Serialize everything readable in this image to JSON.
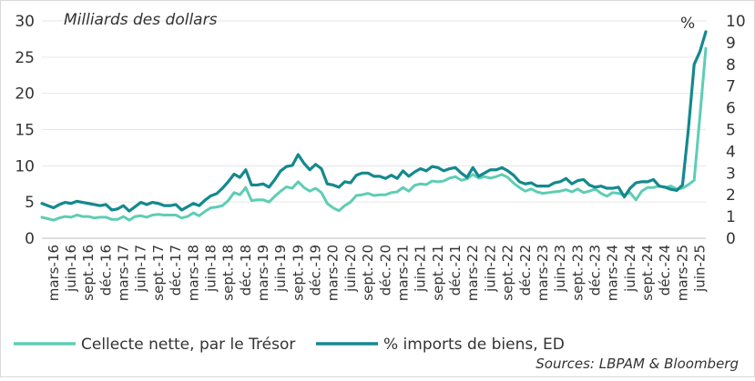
{
  "chart_data": {
    "type": "line",
    "title": "Milliards des dollars",
    "right_axis_unit": "%",
    "source": "Sources: LBPAM & Bloomberg",
    "y_left": {
      "min": 0,
      "max": 30,
      "ticks": [
        0,
        5,
        10,
        15,
        20,
        25,
        30
      ]
    },
    "y_right": {
      "min": 0,
      "max": 10,
      "ticks": [
        0,
        1,
        2,
        3,
        4,
        5,
        6,
        7,
        8,
        9,
        10
      ]
    },
    "grid": true,
    "legend_position": "bottom",
    "x": [
      "janv.-16",
      "févr.-16",
      "mars-16",
      "avr.-16",
      "mai-16",
      "juin-16",
      "juil.-16",
      "août-16",
      "sept.-16",
      "oct.-16",
      "nov.-16",
      "déc.-16",
      "janv.-17",
      "févr.-17",
      "mars-17",
      "avr.-17",
      "mai-17",
      "juin-17",
      "juil.-17",
      "août-17",
      "sept.-17",
      "oct.-17",
      "nov.-17",
      "déc.-17",
      "janv.-18",
      "févr.-18",
      "mars-18",
      "avr.-18",
      "mai-18",
      "juin-18",
      "juil.-18",
      "août-18",
      "sept.-18",
      "oct.-18",
      "nov.-18",
      "déc.-18",
      "janv.-19",
      "févr.-19",
      "mars-19",
      "avr.-19",
      "mai-19",
      "juin-19",
      "juil.-19",
      "août-19",
      "sept.-19",
      "oct.-19",
      "nov.-19",
      "déc.-19",
      "janv.-20",
      "févr.-20",
      "mars-20",
      "avr.-20",
      "mai-20",
      "juin-20",
      "juil.-20",
      "août-20",
      "sept.-20",
      "oct.-20",
      "nov.-20",
      "déc.-20",
      "janv.-21",
      "févr.-21",
      "mars-21",
      "avr.-21",
      "mai-21",
      "juin-21",
      "juil.-21",
      "août-21",
      "sept.-21",
      "oct.-21",
      "nov.-21",
      "déc.-21",
      "janv.-22",
      "févr.-22",
      "mars-22",
      "avr.-22",
      "mai-22",
      "juin-22",
      "juil.-22",
      "août-22",
      "sept.-22",
      "oct.-22",
      "nov.-22",
      "déc.-22",
      "janv.-23",
      "févr.-23",
      "mars-23",
      "avr.-23",
      "mai-23",
      "juin-23",
      "juil.-23",
      "août-23",
      "sept.-23",
      "oct.-23",
      "nov.-23",
      "déc.-23",
      "janv.-24",
      "févr.-24",
      "mars-24",
      "avr.-24",
      "mai-24",
      "juin-24",
      "juil.-24",
      "août-24",
      "sept.-24",
      "oct.-24",
      "nov.-24",
      "déc.-24",
      "janv.-25",
      "févr.-25",
      "mars-25",
      "avr.-25",
      "mai-25",
      "juin-25",
      "juil.-25"
    ],
    "tick_labels": [
      "mars-16",
      "juin-16",
      "sept.-16",
      "déc.-16",
      "mars-17",
      "juin-17",
      "sept.-17",
      "déc.-17",
      "mars-18",
      "juin-18",
      "sept.-18",
      "déc.-18",
      "mars-19",
      "juin-19",
      "sept.-19",
      "déc.-19",
      "mars-20",
      "juin-20",
      "sept.-20",
      "déc.-20",
      "mars-21",
      "juin-21",
      "sept.-21",
      "déc.-21",
      "mars-22",
      "juin-22",
      "sept.-22",
      "déc.-22",
      "mars-23",
      "juin-23",
      "sept.-23",
      "déc.-23",
      "mars-24",
      "juin-24",
      "sept.-24",
      "déc.-24",
      "mars-25",
      "juin-25"
    ],
    "series": [
      {
        "name": "Cellecte nette, par le Trésor",
        "axis": "left",
        "color": "#5ECDB4",
        "values": [
          2.9,
          2.7,
          2.5,
          2.8,
          3.0,
          2.9,
          3.2,
          3.0,
          3.0,
          2.8,
          2.9,
          2.9,
          2.6,
          2.6,
          3.0,
          2.5,
          3.0,
          3.1,
          2.9,
          3.2,
          3.3,
          3.2,
          3.2,
          3.2,
          2.8,
          3.0,
          3.5,
          3.1,
          3.7,
          4.2,
          4.3,
          4.5,
          5.2,
          6.3,
          6.0,
          7.0,
          5.2,
          5.3,
          5.3,
          5.0,
          5.8,
          6.5,
          7.1,
          6.9,
          7.8,
          7.0,
          6.5,
          6.9,
          6.3,
          4.8,
          4.2,
          3.8,
          4.5,
          5.0,
          5.9,
          6.0,
          6.2,
          5.9,
          6.0,
          6.0,
          6.3,
          6.4,
          7.0,
          6.5,
          7.3,
          7.5,
          7.4,
          7.9,
          7.8,
          7.9,
          8.3,
          8.5,
          8.0,
          8.2,
          8.8,
          8.3,
          8.5,
          8.3,
          8.5,
          8.8,
          8.4,
          7.6,
          7.0,
          6.5,
          6.8,
          6.4,
          6.2,
          6.3,
          6.4,
          6.5,
          6.7,
          6.4,
          6.8,
          6.3,
          6.5,
          6.8,
          6.2,
          5.8,
          6.3,
          6.2,
          6.0,
          6.3,
          5.3,
          6.5,
          7.0,
          7.0,
          7.2,
          7.0,
          7.2,
          6.8,
          6.9,
          7.4,
          8.0,
          17.0,
          26.2
        ]
      },
      {
        "name": "% imports de biens, ED",
        "axis": "right",
        "color": "#13898F",
        "values": [
          1.6,
          1.5,
          1.4,
          1.55,
          1.65,
          1.6,
          1.7,
          1.65,
          1.6,
          1.55,
          1.5,
          1.55,
          1.3,
          1.35,
          1.5,
          1.25,
          1.45,
          1.65,
          1.55,
          1.65,
          1.6,
          1.5,
          1.5,
          1.55,
          1.3,
          1.45,
          1.6,
          1.5,
          1.75,
          1.95,
          2.05,
          2.3,
          2.6,
          2.95,
          2.8,
          3.15,
          2.45,
          2.45,
          2.5,
          2.35,
          2.7,
          3.1,
          3.3,
          3.35,
          3.85,
          3.45,
          3.15,
          3.4,
          3.2,
          2.5,
          2.45,
          2.35,
          2.6,
          2.55,
          2.9,
          3.0,
          3.0,
          2.85,
          2.85,
          2.75,
          2.9,
          2.75,
          3.1,
          2.85,
          3.05,
          3.2,
          3.1,
          3.3,
          3.25,
          3.1,
          3.2,
          3.25,
          3.0,
          2.8,
          3.25,
          2.85,
          3.0,
          3.15,
          3.15,
          3.25,
          3.1,
          2.9,
          2.6,
          2.5,
          2.55,
          2.4,
          2.4,
          2.4,
          2.55,
          2.6,
          2.75,
          2.5,
          2.65,
          2.7,
          2.45,
          2.35,
          2.4,
          2.3,
          2.3,
          2.35,
          1.9,
          2.3,
          2.55,
          2.6,
          2.6,
          2.7,
          2.4,
          2.35,
          2.25,
          2.2,
          2.45,
          5.0,
          8.0,
          8.6,
          9.5
        ]
      }
    ]
  }
}
